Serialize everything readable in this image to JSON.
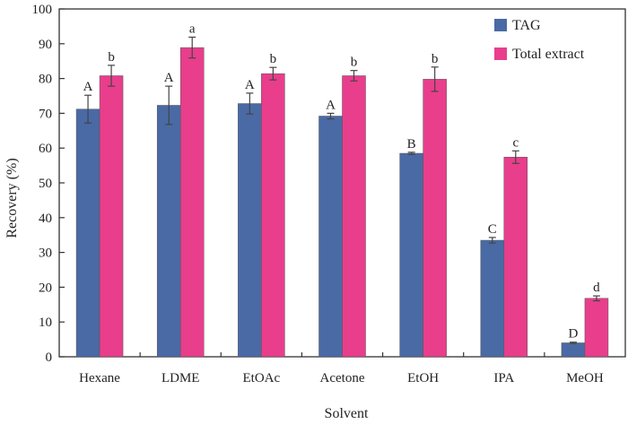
{
  "chart_data": {
    "type": "bar",
    "xlabel": "Solvent",
    "ylabel": "Recovery (%)",
    "ylim": [
      0,
      100
    ],
    "yticks": [
      0,
      10,
      20,
      30,
      40,
      50,
      60,
      70,
      80,
      90,
      100
    ],
    "categories": [
      "Hexane",
      "LDME",
      "EtOAc",
      "Acetone",
      "EtOH",
      "IPA",
      "MeOH"
    ],
    "legend_position": "top-right",
    "grid": false,
    "series": [
      {
        "name": "TAG",
        "color": "#4a6aa5",
        "values": [
          71.2,
          72.3,
          72.8,
          69.2,
          58.5,
          33.5,
          4.0
        ],
        "errors": [
          4.0,
          5.5,
          3.0,
          0.8,
          0.3,
          0.8,
          0.2
        ],
        "labels": [
          "A",
          "A",
          "A",
          "A",
          "B",
          "C",
          "D"
        ]
      },
      {
        "name": "Total extract",
        "color": "#e83e8c",
        "values": [
          80.8,
          88.9,
          81.4,
          80.8,
          79.8,
          57.4,
          16.8
        ],
        "errors": [
          3.0,
          3.0,
          1.8,
          1.5,
          3.5,
          1.8,
          0.7
        ],
        "labels": [
          "b",
          "a",
          "b",
          "b",
          "b",
          "c",
          "d"
        ]
      }
    ]
  }
}
